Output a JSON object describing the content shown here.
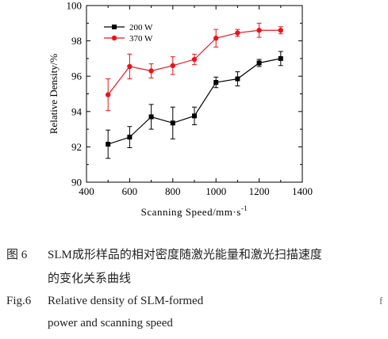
{
  "chart_data": {
    "type": "line",
    "xlabel": "Scanning Speed/mm·s",
    "xlabel_sup": "-1",
    "ylabel": "Relative Density/%",
    "xlim": [
      400,
      1400
    ],
    "ylim": [
      90,
      100
    ],
    "xticks": [
      400,
      600,
      800,
      1000,
      1200,
      1400
    ],
    "yticks": [
      90,
      92,
      94,
      96,
      98,
      100
    ],
    "grid": false,
    "legend_position": "top-left",
    "x": [
      500,
      600,
      700,
      800,
      900,
      1000,
      1100,
      1200,
      1300
    ],
    "series": [
      {
        "name": "200 W",
        "color": "#000000",
        "marker": "square",
        "values": [
          92.15,
          92.55,
          93.7,
          93.35,
          93.75,
          95.65,
          95.85,
          96.75,
          97.0
        ],
        "errors": [
          0.8,
          0.6,
          0.7,
          0.9,
          0.5,
          0.3,
          0.4,
          0.2,
          0.4
        ]
      },
      {
        "name": "370 W",
        "color": "#e8141c",
        "marker": "circle",
        "values": [
          94.95,
          96.55,
          96.3,
          96.6,
          96.95,
          98.15,
          98.45,
          98.6,
          98.6
        ],
        "errors": [
          0.9,
          0.7,
          0.4,
          0.5,
          0.3,
          0.5,
          0.2,
          0.4,
          0.2
        ]
      }
    ]
  },
  "caption": {
    "cn_label": "图 6",
    "cn_line1": "SLM成形样品的相对密度随激光能量和激光扫描速度",
    "cn_line2": "的变化关系曲线",
    "en_label": "Fig.6",
    "en_line1": "Relative density of SLM-formed",
    "en_tail": "f",
    "en_line2": "power and scanning speed"
  }
}
